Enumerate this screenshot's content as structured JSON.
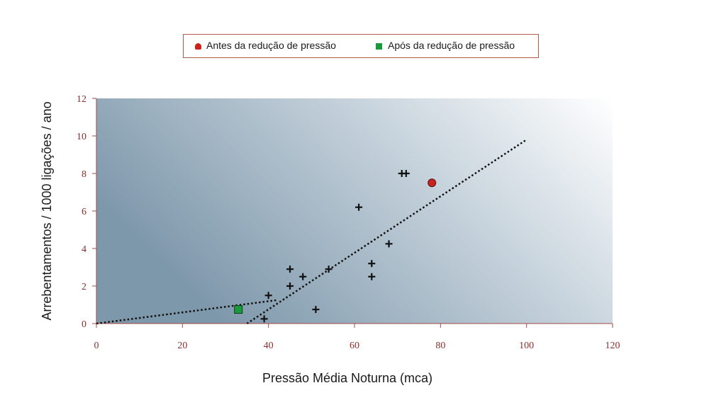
{
  "chart_data": {
    "type": "scatter",
    "xlabel": "Pressão Média Noturna (mca)",
    "ylabel": "Arrebentamentos / 1000 ligações / ano",
    "xlim": [
      0,
      120
    ],
    "ylim": [
      0,
      12
    ],
    "xticks": [
      0,
      20,
      40,
      60,
      80,
      100,
      120
    ],
    "yticks": [
      0,
      2,
      4,
      6,
      8,
      10,
      12
    ],
    "grid": false,
    "legend_position": "top-center",
    "series": [
      {
        "name": "Antes da redução de pressão",
        "marker": "circle",
        "color": "#c8231e",
        "points": [
          [
            78,
            7.5
          ]
        ]
      },
      {
        "name": "Após da redução de pressão",
        "marker": "square",
        "color": "#1a9a3a",
        "points": [
          [
            33,
            0.75
          ]
        ]
      },
      {
        "marker": "plus",
        "color": "#111111",
        "points": [
          [
            39,
            0.25
          ],
          [
            40,
            1.5
          ],
          [
            45,
            2.9
          ],
          [
            45,
            2.0
          ],
          [
            48,
            2.5
          ],
          [
            51,
            0.75
          ],
          [
            54,
            2.9
          ],
          [
            61,
            6.2
          ],
          [
            64,
            3.2
          ],
          [
            64,
            2.5
          ],
          [
            68,
            4.25
          ],
          [
            71,
            8.0
          ],
          [
            72,
            8.0
          ]
        ]
      }
    ],
    "trendlines": [
      {
        "style": "dotted",
        "points": [
          [
            0,
            0
          ],
          [
            42,
            1.25
          ]
        ]
      },
      {
        "style": "dotted",
        "points": [
          [
            35,
            0
          ],
          [
            100,
            9.8
          ]
        ]
      }
    ]
  }
}
